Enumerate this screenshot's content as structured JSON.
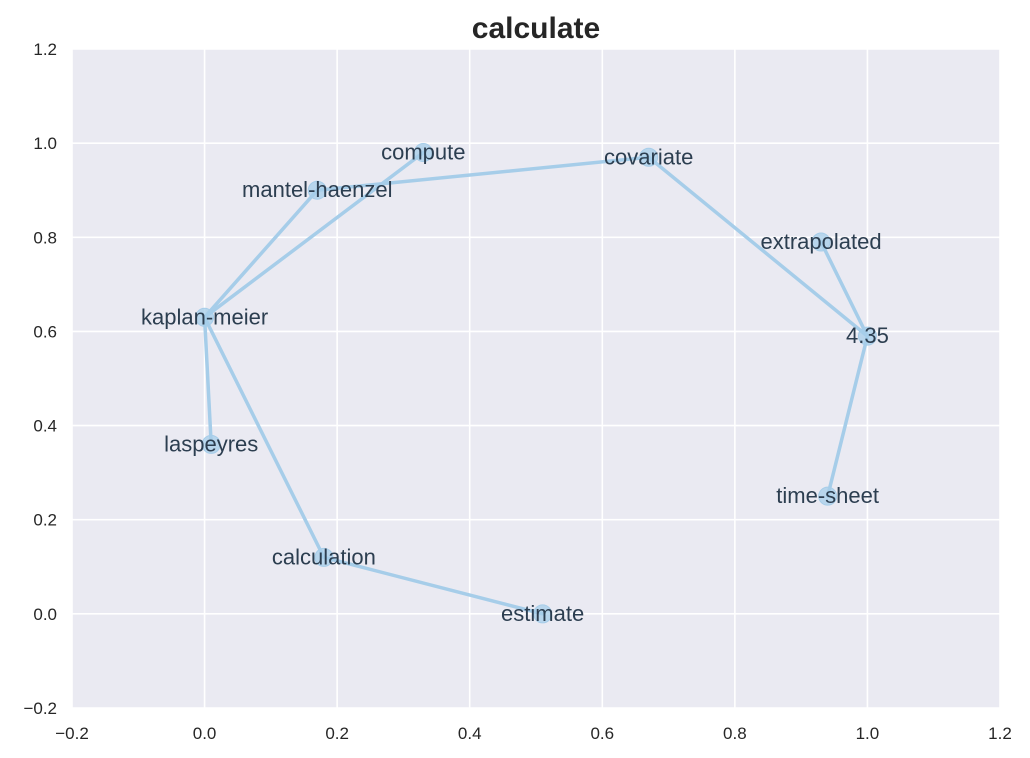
{
  "chart_data": {
    "type": "scatter",
    "title": "calculate",
    "xlabel": "",
    "ylabel": "",
    "xlim": [
      -0.2,
      1.2
    ],
    "ylim": [
      -0.2,
      1.2
    ],
    "x_ticks": [
      -0.2,
      0.0,
      0.2,
      0.4,
      0.6,
      0.8,
      1.0,
      1.2
    ],
    "y_ticks": [
      -0.2,
      0.0,
      0.2,
      0.4,
      0.6,
      0.8,
      1.0,
      1.2
    ],
    "x_tick_labels": [
      "−0.2",
      "0.0",
      "0.2",
      "0.4",
      "0.6",
      "0.8",
      "1.0",
      "1.2"
    ],
    "y_tick_labels": [
      "−0.2",
      "0.0",
      "0.2",
      "0.4",
      "0.6",
      "0.8",
      "1.0",
      "1.2"
    ],
    "grid": true,
    "background": "#eaeaf2",
    "grid_color": "#ffffff",
    "edge_color": "#a6cde9",
    "node_color": "#a6cde9",
    "label_color": "#2c3e50",
    "nodes": [
      {
        "id": "compute",
        "label": "compute",
        "x": 0.33,
        "y": 0.98
      },
      {
        "id": "covariate",
        "label": "covariate",
        "x": 0.67,
        "y": 0.97
      },
      {
        "id": "mantel-haenzel",
        "label": "mantel-haenzel",
        "x": 0.17,
        "y": 0.9
      },
      {
        "id": "extrapolated",
        "label": "extrapolated",
        "x": 0.93,
        "y": 0.79
      },
      {
        "id": "kaplan-meier",
        "label": "kaplan-meier",
        "x": 0.0,
        "y": 0.63
      },
      {
        "id": "4.35",
        "label": "4.35",
        "x": 1.0,
        "y": 0.59
      },
      {
        "id": "laspeyres",
        "label": "laspeyres",
        "x": 0.01,
        "y": 0.36
      },
      {
        "id": "time-sheet",
        "label": "time-sheet",
        "x": 0.94,
        "y": 0.25
      },
      {
        "id": "calculation",
        "label": "calculation",
        "x": 0.18,
        "y": 0.12
      },
      {
        "id": "estimate",
        "label": "estimate",
        "x": 0.51,
        "y": 0.0
      }
    ],
    "edges": [
      [
        "kaplan-meier",
        "compute"
      ],
      [
        "kaplan-meier",
        "mantel-haenzel"
      ],
      [
        "mantel-haenzel",
        "covariate"
      ],
      [
        "covariate",
        "4.35"
      ],
      [
        "extrapolated",
        "4.35"
      ],
      [
        "4.35",
        "time-sheet"
      ],
      [
        "kaplan-meier",
        "laspeyres"
      ],
      [
        "kaplan-meier",
        "calculation"
      ],
      [
        "calculation",
        "estimate"
      ]
    ]
  }
}
